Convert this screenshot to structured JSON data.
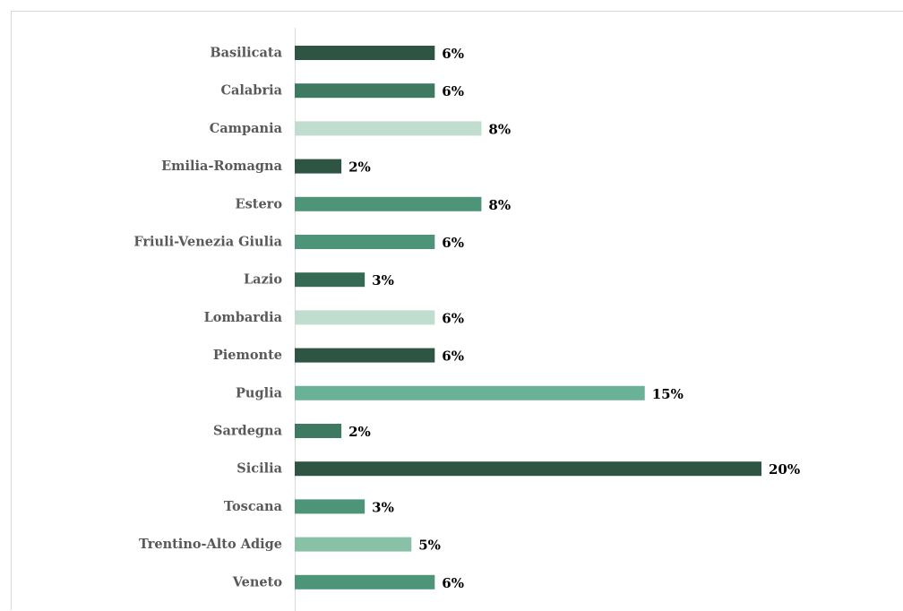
{
  "chart_data": {
    "type": "bar",
    "orientation": "horizontal",
    "title": "",
    "xlabel": "",
    "ylabel": "",
    "grid": false,
    "legend": "none",
    "xlim": [
      0,
      20
    ],
    "categories": [
      "Basilicata",
      "Calabria",
      "Campania",
      "Emilia-Romagna",
      "Estero",
      "Friuli-Venezia Giulia",
      "Lazio",
      "Lombardia",
      "Piemonte",
      "Puglia",
      "Sardegna",
      "Sicilia",
      "Toscana",
      "Trentino-Alto Adige",
      "Veneto"
    ],
    "values": [
      6,
      6,
      8,
      2,
      8,
      6,
      3,
      6,
      6,
      15,
      2,
      20,
      3,
      5,
      6
    ],
    "value_labels": [
      "6%",
      "6%",
      "8%",
      "2%",
      "8%",
      "6%",
      "3%",
      "6%",
      "6%",
      "15%",
      "2%",
      "20%",
      "3%",
      "5%",
      "6%"
    ],
    "colors": [
      "#2e5444",
      "#3e7a62",
      "#c0ddcf",
      "#2e5444",
      "#4d9479",
      "#4d9479",
      "#366a55",
      "#c0ddcf",
      "#2e5444",
      "#6ab297",
      "#3e7a62",
      "#2e5444",
      "#4d9479",
      "#88c0a8",
      "#4d9479"
    ]
  }
}
